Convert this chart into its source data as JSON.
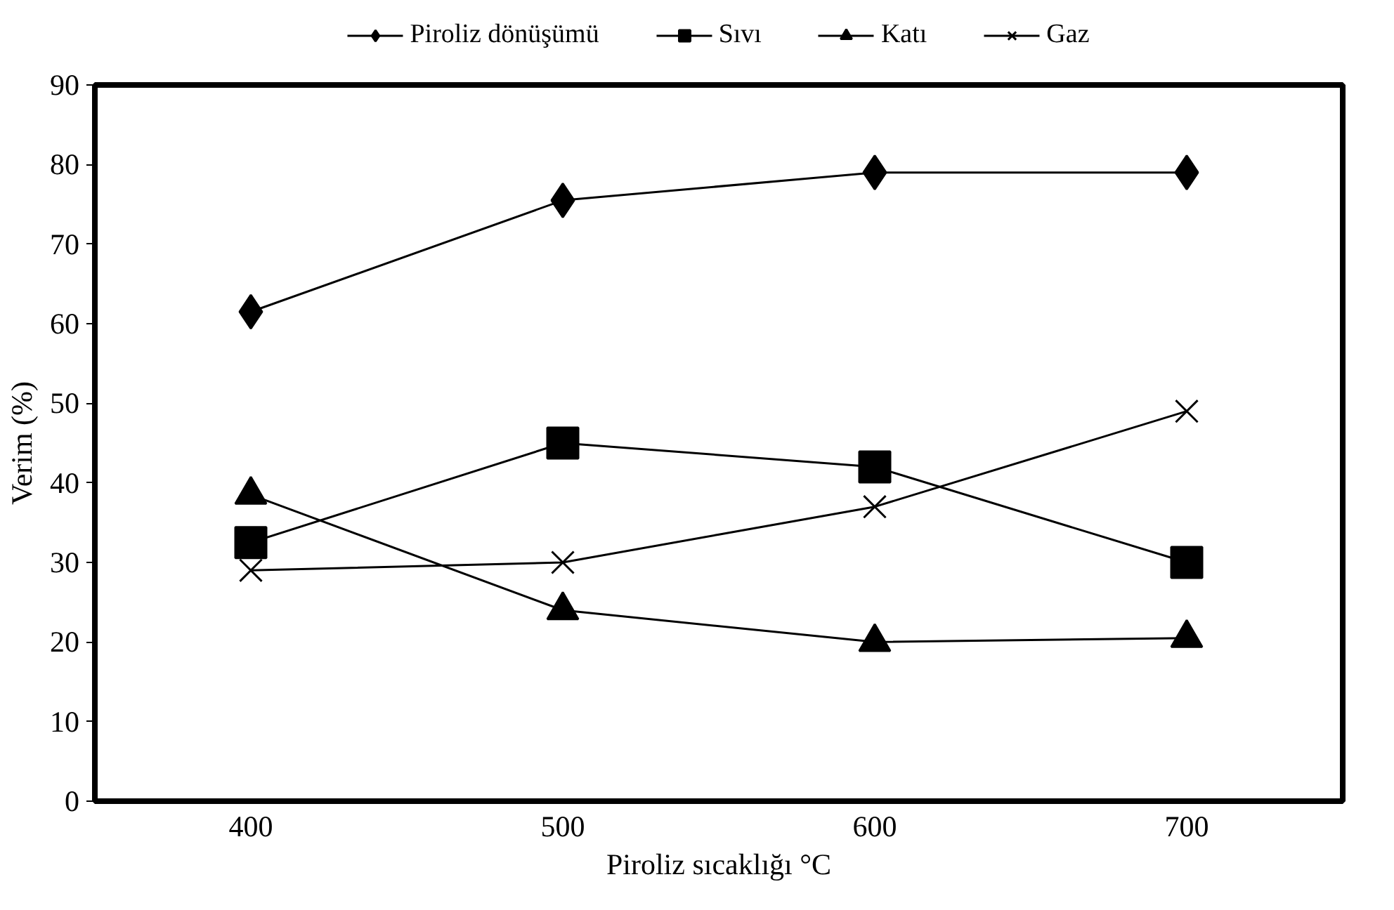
{
  "chart_data": {
    "type": "line",
    "xlabel": "Piroliz sıcaklığı °C",
    "ylabel": "Verim (%)",
    "categories": [
      "400",
      "500",
      "600",
      "700"
    ],
    "ylim": [
      0,
      90
    ],
    "yticks": [
      0,
      10,
      20,
      30,
      40,
      50,
      60,
      70,
      80,
      90
    ],
    "grid": false,
    "legend": "top",
    "line_style": "solid",
    "series": [
      {
        "name": "Piroliz dönüşümü",
        "color": "#000000",
        "marker": "diamond",
        "values": [
          61.5,
          75.5,
          79,
          79
        ]
      },
      {
        "name": "Sıvı",
        "color": "#000000",
        "marker": "square",
        "values": [
          32.5,
          45,
          42,
          30
        ]
      },
      {
        "name": "Katı",
        "color": "#000000",
        "marker": "triangle",
        "values": [
          38.5,
          24,
          20,
          20.5
        ]
      },
      {
        "name": "Gaz",
        "color": "#000000",
        "marker": "cross",
        "values": [
          29,
          30,
          37,
          49
        ]
      }
    ]
  }
}
